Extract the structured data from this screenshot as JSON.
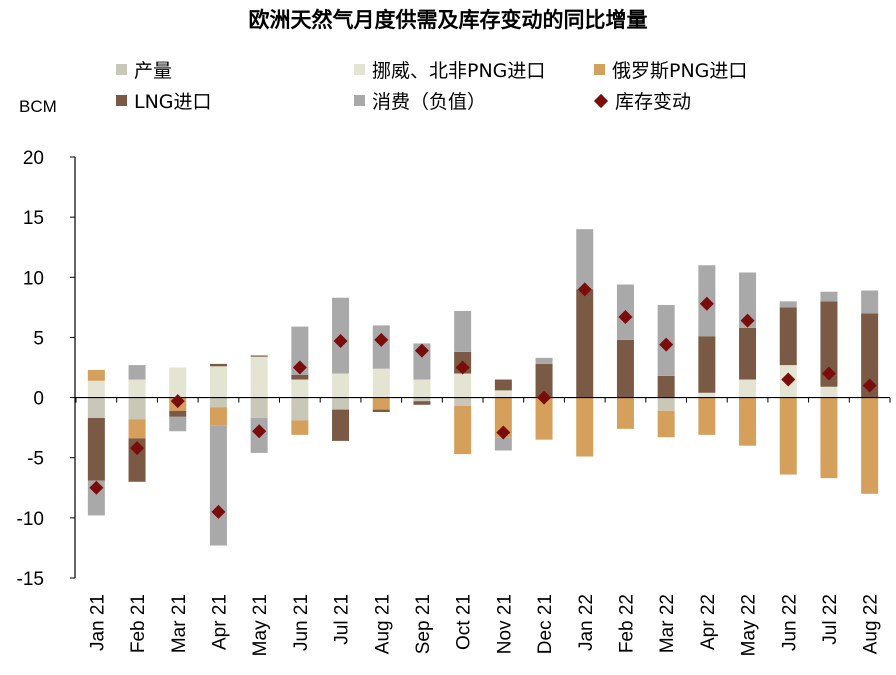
{
  "chart_data": {
    "type": "bar",
    "stacked": true,
    "title": "欧洲天然气月度供需及库存变动的同比增量",
    "ylabel": "BCM",
    "ylim": [
      -15,
      20
    ],
    "yticks": [
      20,
      15,
      10,
      5,
      0,
      -5,
      -10,
      -15
    ],
    "categories": [
      "Jan 21",
      "Feb 21",
      "Mar 21",
      "Apr 21",
      "May 21",
      "Jun 21",
      "Jul 21",
      "Aug 21",
      "Sep 21",
      "Oct 21",
      "Nov 21",
      "Dec 21",
      "Jan 22",
      "Feb 22",
      "Mar 22",
      "Apr 22",
      "May 22",
      "Jun 22",
      "Jul 22",
      "Aug 22"
    ],
    "series": [
      {
        "name": "产量",
        "color": "#c9c8b8",
        "values": [
          -1.7,
          -1.8,
          0.0,
          -0.8,
          -1.7,
          -1.9,
          -1.0,
          0.0,
          -0.3,
          -0.7,
          0.0,
          0.0,
          0.0,
          0.0,
          -1.1,
          0.0,
          0.0,
          0.0,
          0.0,
          0.0
        ]
      },
      {
        "name": "挪威、北非PNG进口",
        "color": "#e3e4d2",
        "values": [
          1.4,
          1.5,
          2.5,
          2.6,
          3.4,
          1.5,
          2.0,
          2.4,
          1.5,
          2.0,
          0.6,
          0.0,
          0.0,
          0.0,
          0.0,
          0.4,
          1.5,
          2.7,
          0.9,
          0.0
        ]
      },
      {
        "name": "俄罗斯PNG进口",
        "color": "#d4a05c",
        "values": [
          0.9,
          -1.6,
          -1.1,
          -1.5,
          0.0,
          -1.2,
          0.0,
          -1.0,
          0.0,
          -4.0,
          -3.3,
          -3.5,
          -4.9,
          -2.6,
          -2.2,
          -3.1,
          -4.0,
          -6.4,
          -6.7,
          -8.0
        ]
      },
      {
        "name": "LNG进口",
        "color": "#7a5a45",
        "values": [
          -5.2,
          -3.6,
          -0.5,
          0.2,
          0.1,
          0.4,
          -2.6,
          -0.2,
          -0.3,
          1.8,
          0.9,
          2.8,
          9.0,
          4.8,
          1.8,
          4.7,
          4.3,
          4.8,
          7.1,
          7.0
        ]
      },
      {
        "name": "消费（负值）",
        "color": "#a9a9aa",
        "values": [
          -2.9,
          1.2,
          -1.2,
          -10.0,
          -2.9,
          4.0,
          6.3,
          3.6,
          3.0,
          3.4,
          -1.1,
          0.5,
          5.0,
          4.6,
          5.9,
          5.9,
          4.6,
          0.5,
          0.8,
          1.9
        ]
      },
      {
        "name": "库存变动",
        "color": "#7b0c0c",
        "type": "scatter",
        "marker": "diamond",
        "values": [
          -7.5,
          -4.2,
          -0.3,
          -9.5,
          -2.8,
          2.5,
          4.7,
          4.8,
          3.9,
          2.5,
          -2.9,
          0.0,
          9.0,
          6.7,
          4.4,
          7.8,
          6.4,
          1.5,
          2.0,
          1.0
        ]
      }
    ]
  }
}
